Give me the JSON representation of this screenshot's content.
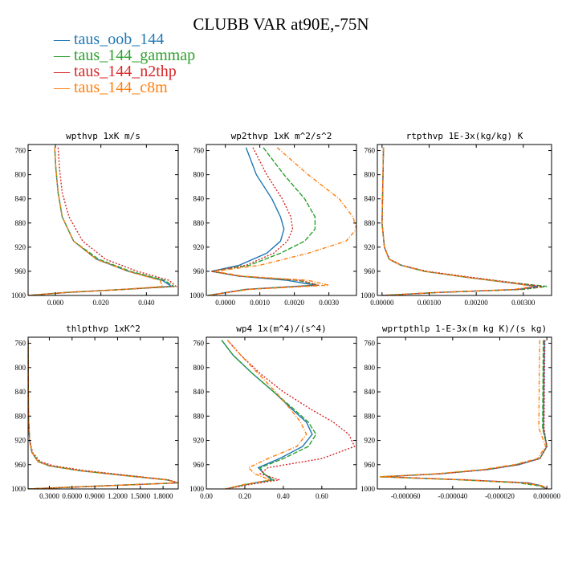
{
  "figure_title": "CLUBB VAR at90E,-75N",
  "legend": [
    {
      "name": "taus_oob_144",
      "color": "#1f77b4"
    },
    {
      "name": "taus_144_gammap",
      "color": "#2ca02c"
    },
    {
      "name": "taus_144_n2thp",
      "color": "#d62728"
    },
    {
      "name": "taus_144_c8m",
      "color": "#ff7f0e"
    }
  ],
  "chart_data": [
    {
      "type": "line",
      "title": "wpthvp  1xK m/s",
      "ylim": [
        1000,
        750
      ],
      "yticks": [
        760,
        800,
        840,
        880,
        920,
        960,
        1000
      ],
      "xlim": [
        -0.012,
        0.054
      ],
      "xticks": [
        0.0,
        0.02,
        0.04
      ],
      "xtick_labels": [
        "0.000",
        "0.020",
        "0.040"
      ],
      "y": [
        755,
        790,
        830,
        870,
        910,
        940,
        960,
        975,
        985,
        990,
        995,
        1000
      ],
      "series": [
        {
          "name": "taus_oob_144",
          "values": [
            -0.0003,
            0.0002,
            0.0012,
            0.003,
            0.008,
            0.018,
            0.032,
            0.047,
            0.051,
            0.03,
            0.005,
            -0.012
          ]
        },
        {
          "name": "taus_144_gammap",
          "values": [
            -0.0003,
            0.0002,
            0.0012,
            0.003,
            0.008,
            0.019,
            0.033,
            0.048,
            0.052,
            0.03,
            0.005,
            -0.012
          ]
        },
        {
          "name": "taus_144_n2thp",
          "values": [
            0.0012,
            0.0018,
            0.003,
            0.006,
            0.012,
            0.022,
            0.036,
            0.05,
            0.053,
            0.03,
            0.005,
            -0.012
          ]
        },
        {
          "name": "taus_144_c8m",
          "values": [
            -0.0003,
            0.0002,
            0.0012,
            0.003,
            0.008,
            0.018,
            0.032,
            0.046,
            0.047,
            0.03,
            0.005,
            -0.012
          ]
        }
      ]
    },
    {
      "type": "line",
      "title": "wp2thvp  1xK m^2/s^2",
      "ylim": [
        1000,
        750
      ],
      "yticks": [
        760,
        800,
        840,
        880,
        920,
        960,
        1000
      ],
      "xlim": [
        -0.00055,
        0.0038
      ],
      "xticks": [
        0.0,
        0.001,
        0.002,
        0.003
      ],
      "xtick_labels": [
        "0.0000",
        "0.0010",
        "0.0020",
        "0.0030"
      ],
      "y": [
        755,
        800,
        840,
        870,
        890,
        910,
        930,
        950,
        960,
        968,
        975,
        983,
        990,
        1000
      ],
      "series": [
        {
          "name": "taus_oob_144",
          "values": [
            0.0006,
            0.0009,
            0.00135,
            0.0016,
            0.0017,
            0.0016,
            0.0012,
            0.0004,
            -0.0004,
            0.0004,
            0.0018,
            0.0026,
            0.0006,
            -0.0005
          ]
        },
        {
          "name": "taus_144_gammap",
          "values": [
            0.0011,
            0.0017,
            0.0023,
            0.0026,
            0.0026,
            0.0023,
            0.0016,
            0.0007,
            -0.0004,
            0.0004,
            0.0021,
            0.0027,
            0.0006,
            -0.0005
          ]
        },
        {
          "name": "taus_144_n2thp",
          "values": [
            0.0008,
            0.0012,
            0.00165,
            0.0019,
            0.00195,
            0.0018,
            0.0014,
            0.0006,
            -0.0004,
            0.0004,
            0.0022,
            0.0027,
            0.0006,
            -0.0005
          ]
        },
        {
          "name": "taus_144_c8m",
          "values": [
            0.0015,
            0.0024,
            0.0033,
            0.0037,
            0.0038,
            0.0035,
            0.0024,
            0.001,
            -0.0003,
            0.0005,
            0.0024,
            0.003,
            0.0007,
            -0.0005
          ]
        }
      ]
    },
    {
      "type": "line",
      "title": "rtpthvp  1E-3x(kg/kg) K",
      "ylim": [
        1000,
        750
      ],
      "yticks": [
        760,
        800,
        840,
        880,
        920,
        960,
        1000
      ],
      "xlim": [
        -0.0001,
        0.0036
      ],
      "xticks": [
        0.0,
        0.001,
        0.002,
        0.003
      ],
      "xtick_labels": [
        "0.00000",
        "0.00100",
        "0.00200",
        "0.00300"
      ],
      "y": [
        755,
        800,
        880,
        920,
        940,
        950,
        960,
        970,
        980,
        985,
        990,
        995,
        1000
      ],
      "series": [
        {
          "name": "taus_oob_144",
          "values": [
            3e-05,
            2e-05,
            0.0,
            5e-05,
            0.00015,
            0.0004,
            0.0009,
            0.0018,
            0.0028,
            0.0033,
            0.0029,
            0.0012,
            0.0
          ]
        },
        {
          "name": "taus_144_gammap",
          "values": [
            3e-05,
            2e-05,
            0.0,
            5e-05,
            0.00015,
            0.0004,
            0.0009,
            0.0018,
            0.0029,
            0.0035,
            0.003,
            0.0012,
            0.0
          ]
        },
        {
          "name": "taus_144_n2thp",
          "values": [
            3e-05,
            2e-05,
            0.0,
            5e-05,
            0.00016,
            0.00042,
            0.00095,
            0.0019,
            0.0029,
            0.0034,
            0.0029,
            0.0012,
            0.0
          ]
        },
        {
          "name": "taus_144_c8m",
          "values": [
            3e-05,
            2e-05,
            0.0,
            5e-05,
            0.00015,
            0.0004,
            0.0009,
            0.0018,
            0.0028,
            0.0032,
            0.0028,
            0.0012,
            0.0
          ]
        }
      ]
    },
    {
      "type": "line",
      "title": "thlpthvp  1xK^2",
      "ylim": [
        1000,
        750
      ],
      "yticks": [
        760,
        800,
        840,
        880,
        920,
        960,
        1000
      ],
      "xlim": [
        0.02,
        2.0
      ],
      "xticks": [
        0.3,
        0.6,
        0.9,
        1.2,
        1.5,
        1.8
      ],
      "xtick_labels": [
        "0.3000",
        "0.6000",
        "0.9000",
        "1.2000",
        "1.5000",
        "1.8000"
      ],
      "y": [
        755,
        800,
        880,
        920,
        940,
        955,
        962,
        970,
        978,
        985,
        990,
        995,
        1000
      ],
      "series": [
        {
          "name": "taus_oob_144",
          "values": [
            0.02,
            0.022,
            0.025,
            0.04,
            0.07,
            0.15,
            0.3,
            0.7,
            1.3,
            1.85,
            2.0,
            1.0,
            0.02
          ]
        },
        {
          "name": "taus_144_gammap",
          "values": [
            0.02,
            0.022,
            0.025,
            0.04,
            0.07,
            0.16,
            0.32,
            0.72,
            1.32,
            1.86,
            2.0,
            1.0,
            0.02
          ]
        },
        {
          "name": "taus_144_n2thp",
          "values": [
            0.02,
            0.022,
            0.025,
            0.04,
            0.08,
            0.18,
            0.36,
            0.78,
            1.36,
            1.87,
            2.0,
            1.0,
            0.02
          ]
        },
        {
          "name": "taus_144_c8m",
          "values": [
            0.02,
            0.022,
            0.025,
            0.04,
            0.07,
            0.15,
            0.3,
            0.7,
            1.28,
            1.84,
            2.0,
            1.0,
            0.02
          ]
        }
      ]
    },
    {
      "type": "line",
      "title": "wp4  1x(m^4)/(s^4)",
      "ylim": [
        1000,
        750
      ],
      "yticks": [
        760,
        800,
        840,
        880,
        920,
        960,
        1000
      ],
      "xlim": [
        0.0,
        0.78
      ],
      "xticks": [
        0.0,
        0.2,
        0.4,
        0.6
      ],
      "xtick_labels": [
        "0.00",
        "0.20",
        "0.40",
        "0.60"
      ],
      "y": [
        755,
        780,
        810,
        840,
        870,
        890,
        910,
        930,
        950,
        965,
        975,
        985,
        993,
        1000
      ],
      "series": [
        {
          "name": "taus_oob_144",
          "values": [
            0.08,
            0.14,
            0.24,
            0.35,
            0.45,
            0.52,
            0.55,
            0.5,
            0.38,
            0.27,
            0.3,
            0.34,
            0.2,
            0.1
          ]
        },
        {
          "name": "taus_144_gammap",
          "values": [
            0.08,
            0.14,
            0.24,
            0.35,
            0.46,
            0.53,
            0.57,
            0.53,
            0.4,
            0.28,
            0.3,
            0.35,
            0.2,
            0.1
          ]
        },
        {
          "name": "taus_144_n2thp",
          "values": [
            0.11,
            0.18,
            0.28,
            0.4,
            0.55,
            0.66,
            0.74,
            0.77,
            0.6,
            0.32,
            0.28,
            0.38,
            0.22,
            0.1
          ]
        },
        {
          "name": "taus_144_c8m",
          "values": [
            0.11,
            0.18,
            0.27,
            0.36,
            0.44,
            0.49,
            0.52,
            0.47,
            0.32,
            0.22,
            0.25,
            0.33,
            0.19,
            0.1
          ]
        }
      ]
    },
    {
      "type": "line",
      "title": "wprtpthlp  1-E-3x(m kg K)/(s kg)",
      "ylim": [
        1000,
        750
      ],
      "yticks": [
        760,
        800,
        840,
        880,
        920,
        960,
        1000
      ],
      "xlim": [
        -7.2e-05,
        2e-06
      ],
      "xticks": [
        -6e-05,
        -4e-05,
        -2e-05,
        0.0
      ],
      "xtick_labels": [
        "-0.000060",
        "-0.000040",
        "-0.000020",
        "0.000000"
      ],
      "y": [
        755,
        800,
        850,
        900,
        930,
        950,
        960,
        968,
        975,
        980,
        985,
        990,
        995,
        1000
      ],
      "series": [
        {
          "name": "taus_oob_144",
          "values": [
            -1e-06,
            -1.2e-06,
            -1.3e-06,
            -1.5e-06,
            0.0,
            -3e-06,
            -1.2e-05,
            -2.5e-05,
            -4.5e-05,
            -7e-05,
            -3.5e-05,
            -8e-06,
            -2e-06,
            0.0
          ]
        },
        {
          "name": "taus_144_gammap",
          "values": [
            -1.5e-06,
            -1.6e-06,
            -1.7e-06,
            -1.8e-06,
            0.0,
            -3e-06,
            -1.3e-05,
            -2.6e-05,
            -4.6e-05,
            -7.1e-05,
            -3.7e-05,
            -1.2e-05,
            -3e-06,
            0.0
          ]
        },
        {
          "name": "taus_144_n2thp",
          "values": [
            -8e-07,
            -1e-06,
            -1.1e-06,
            -1.2e-06,
            0.0,
            -3e-06,
            -1.2e-05,
            -2.5e-05,
            -4.5e-05,
            -6.9e-05,
            -3.4e-05,
            -8e-06,
            -2e-06,
            0.0
          ]
        },
        {
          "name": "taus_144_c8m",
          "values": [
            -3e-06,
            -3.2e-06,
            -3.3e-06,
            -3.4e-06,
            -5e-07,
            -4e-06,
            -1.4e-05,
            -2.7e-05,
            -4.7e-05,
            -7.1e-05,
            -3.6e-05,
            -1e-05,
            -2e-06,
            0.0
          ]
        }
      ]
    }
  ]
}
